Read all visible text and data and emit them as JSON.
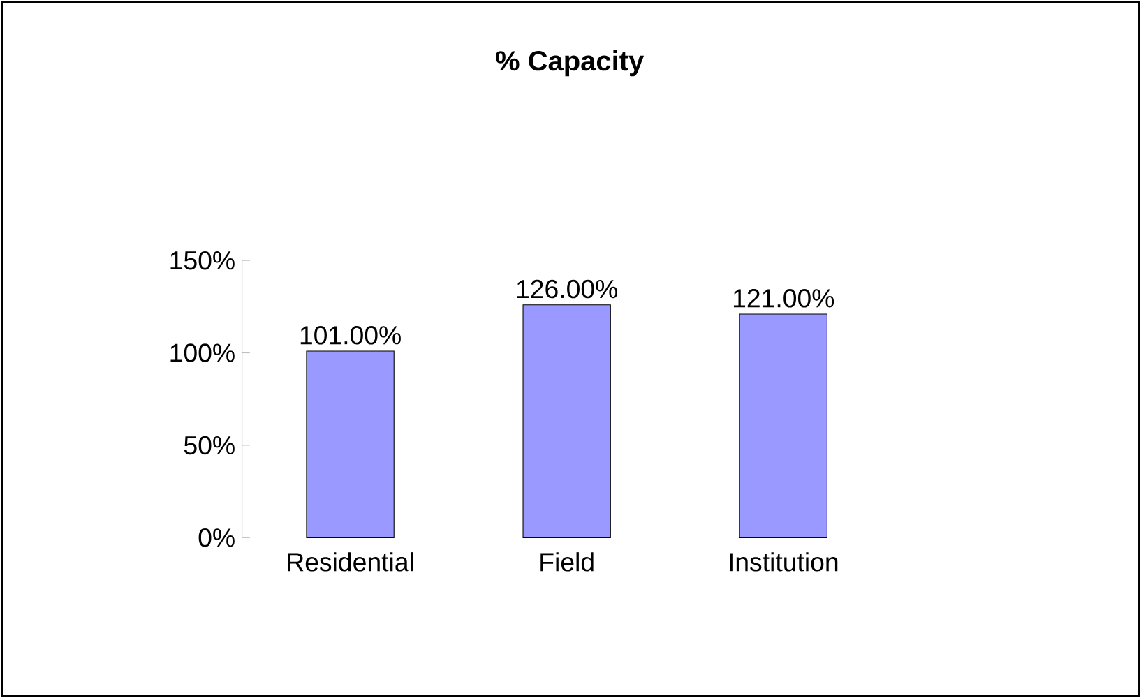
{
  "chart_data": {
    "type": "bar",
    "title": "% Capacity",
    "categories": [
      "Residential",
      "Field",
      "Institution"
    ],
    "values": [
      101,
      126,
      121
    ],
    "value_labels": [
      "101.00%",
      "126.00%",
      "121.00%"
    ],
    "color": "#9999ff",
    "ylim": [
      0,
      150
    ],
    "yticks": [
      {
        "value": 0,
        "label": "0%"
      },
      {
        "value": 50,
        "label": "50%"
      },
      {
        "value": 100,
        "label": "100%"
      },
      {
        "value": 150,
        "label": "150%"
      }
    ],
    "grid": false
  }
}
